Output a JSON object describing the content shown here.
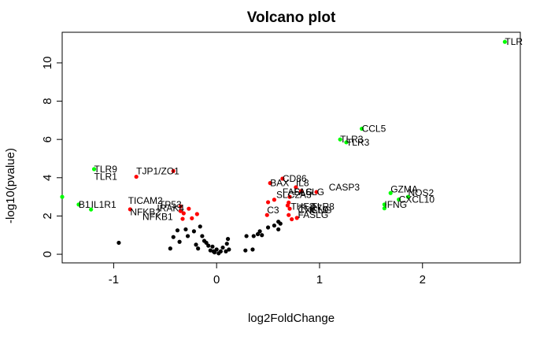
{
  "chart_data": {
    "type": "scatter",
    "title": "Volcano plot",
    "xlabel": "log2FoldChange",
    "ylabel": "-log10(pvalue)",
    "xlim": [
      -1.5,
      2.95
    ],
    "ylim": [
      -0.45,
      11.6
    ],
    "x_ticks": [
      -1,
      0,
      1,
      2
    ],
    "y_ticks": [
      0,
      2,
      4,
      6,
      8,
      10
    ],
    "grid": false,
    "legend": "none",
    "colors": {
      "black": "#000000",
      "red": "#ff0000",
      "green": "#00ff00"
    },
    "points": [
      {
        "x": 2.8,
        "y": 11.1,
        "color": "green",
        "label": "TLR"
      },
      {
        "x": 1.41,
        "y": 6.56,
        "color": "green",
        "label": "CCL5"
      },
      {
        "x": 1.2,
        "y": 6.0,
        "color": "green",
        "label": "TLR3"
      },
      {
        "x": 1.26,
        "y": 5.85,
        "color": "green",
        "label": "TLR3"
      },
      {
        "x": 1.69,
        "y": 3.2,
        "color": "green",
        "label": "GZMA"
      },
      {
        "x": 1.86,
        "y": 3.0,
        "color": "green",
        "label": "NOS2"
      },
      {
        "x": 1.77,
        "y": 2.86,
        "color": "green",
        "label": "CXCL10"
      },
      {
        "x": 1.63,
        "y": 2.6,
        "color": "green",
        "label": "IFNG"
      },
      {
        "x": 1.63,
        "y": 2.4,
        "color": "green",
        "label": ""
      },
      {
        "x": -1.19,
        "y": 4.45,
        "color": "green",
        "label": "TLR9"
      },
      {
        "x": -1.34,
        "y": 2.6,
        "color": "green",
        "label": "B1"
      },
      {
        "x": -1.22,
        "y": 2.34,
        "color": "green",
        "label": "IL1R1"
      },
      {
        "x": -1.5,
        "y": 3.0,
        "color": "green",
        "label": ""
      },
      {
        "x": -0.42,
        "y": 4.35,
        "color": "red",
        "label": "TJP1/ZO1"
      },
      {
        "x": -0.78,
        "y": 4.05,
        "color": "red",
        "label": "TLR1"
      },
      {
        "x": -0.35,
        "y": 2.5,
        "color": "red",
        "label": "TICAM2"
      },
      {
        "x": -0.27,
        "y": 2.38,
        "color": "red",
        "label": "TP53"
      },
      {
        "x": -0.84,
        "y": 2.35,
        "color": "red",
        "label": "IRAK4"
      },
      {
        "x": -0.35,
        "y": 2.26,
        "color": "red",
        "label": "NFKB1"
      },
      {
        "x": -0.32,
        "y": 2.14,
        "color": "red",
        "label": "NFKB1"
      },
      {
        "x": -0.19,
        "y": 2.1,
        "color": "red",
        "label": ""
      },
      {
        "x": -0.33,
        "y": 1.85,
        "color": "red",
        "label": ""
      },
      {
        "x": -0.24,
        "y": 1.88,
        "color": "red",
        "label": ""
      },
      {
        "x": 0.64,
        "y": 3.95,
        "color": "red",
        "label": "CD86"
      },
      {
        "x": 0.77,
        "y": 3.5,
        "color": "red",
        "label": "IL8"
      },
      {
        "x": 0.52,
        "y": 3.72,
        "color": "red",
        "label": "BAX"
      },
      {
        "x": 0.82,
        "y": 3.3,
        "color": "red",
        "label": "FASLG"
      },
      {
        "x": 0.97,
        "y": 3.25,
        "color": "red",
        "label": "CASP3"
      },
      {
        "x": 0.71,
        "y": 3.0,
        "color": "red",
        "label": "SLC2A3"
      },
      {
        "x": 0.56,
        "y": 2.85,
        "color": "red",
        "label": ""
      },
      {
        "x": 0.5,
        "y": 2.72,
        "color": "red",
        "label": ""
      },
      {
        "x": 0.7,
        "y": 2.7,
        "color": "red",
        "label": "TLR8"
      },
      {
        "x": 0.69,
        "y": 2.55,
        "color": "red",
        "label": "TLR7"
      },
      {
        "x": 0.71,
        "y": 2.38,
        "color": "red",
        "label": "FASLG"
      },
      {
        "x": 0.49,
        "y": 2.05,
        "color": "red",
        "label": "C3"
      },
      {
        "x": 0.7,
        "y": 2.05,
        "color": "red",
        "label": ""
      },
      {
        "x": 0.73,
        "y": 1.83,
        "color": "red",
        "label": ""
      },
      {
        "x": 0.78,
        "y": 1.9,
        "color": "red",
        "label": ""
      },
      {
        "x": -0.95,
        "y": 0.6,
        "color": "black",
        "label": ""
      },
      {
        "x": -0.45,
        "y": 0.3,
        "color": "black",
        "label": ""
      },
      {
        "x": -0.42,
        "y": 0.9,
        "color": "black",
        "label": ""
      },
      {
        "x": -0.38,
        "y": 1.25,
        "color": "black",
        "label": ""
      },
      {
        "x": -0.36,
        "y": 0.65,
        "color": "black",
        "label": ""
      },
      {
        "x": -0.3,
        "y": 1.3,
        "color": "black",
        "label": ""
      },
      {
        "x": -0.28,
        "y": 0.95,
        "color": "black",
        "label": ""
      },
      {
        "x": -0.22,
        "y": 1.2,
        "color": "black",
        "label": ""
      },
      {
        "x": -0.2,
        "y": 0.5,
        "color": "black",
        "label": ""
      },
      {
        "x": -0.18,
        "y": 0.3,
        "color": "black",
        "label": ""
      },
      {
        "x": -0.16,
        "y": 1.45,
        "color": "black",
        "label": ""
      },
      {
        "x": -0.14,
        "y": 0.95,
        "color": "black",
        "label": ""
      },
      {
        "x": -0.12,
        "y": 0.7,
        "color": "black",
        "label": ""
      },
      {
        "x": -0.1,
        "y": 0.6,
        "color": "black",
        "label": ""
      },
      {
        "x": -0.08,
        "y": 0.45,
        "color": "black",
        "label": ""
      },
      {
        "x": -0.06,
        "y": 0.2,
        "color": "black",
        "label": ""
      },
      {
        "x": -0.04,
        "y": 0.4,
        "color": "black",
        "label": ""
      },
      {
        "x": -0.02,
        "y": 0.1,
        "color": "black",
        "label": ""
      },
      {
        "x": 0.0,
        "y": 0.25,
        "color": "black",
        "label": ""
      },
      {
        "x": 0.02,
        "y": 0.05,
        "color": "black",
        "label": ""
      },
      {
        "x": 0.04,
        "y": 0.15,
        "color": "black",
        "label": ""
      },
      {
        "x": 0.06,
        "y": 0.35,
        "color": "black",
        "label": ""
      },
      {
        "x": 0.09,
        "y": 0.15,
        "color": "black",
        "label": ""
      },
      {
        "x": 0.1,
        "y": 0.55,
        "color": "black",
        "label": ""
      },
      {
        "x": 0.11,
        "y": 0.8,
        "color": "black",
        "label": ""
      },
      {
        "x": 0.12,
        "y": 0.25,
        "color": "black",
        "label": ""
      },
      {
        "x": -0.03,
        "y": 0.15,
        "color": "black",
        "label": ""
      },
      {
        "x": 0.28,
        "y": 0.2,
        "color": "black",
        "label": ""
      },
      {
        "x": 0.29,
        "y": 0.95,
        "color": "black",
        "label": ""
      },
      {
        "x": 0.35,
        "y": 0.25,
        "color": "black",
        "label": ""
      },
      {
        "x": 0.36,
        "y": 0.95,
        "color": "black",
        "label": ""
      },
      {
        "x": 0.4,
        "y": 1.05,
        "color": "black",
        "label": ""
      },
      {
        "x": 0.42,
        "y": 1.2,
        "color": "black",
        "label": ""
      },
      {
        "x": 0.44,
        "y": 1.0,
        "color": "black",
        "label": ""
      },
      {
        "x": 0.5,
        "y": 1.4,
        "color": "black",
        "label": ""
      },
      {
        "x": 0.56,
        "y": 1.5,
        "color": "black",
        "label": ""
      },
      {
        "x": 0.6,
        "y": 1.3,
        "color": "black",
        "label": ""
      },
      {
        "x": 0.62,
        "y": 1.6,
        "color": "black",
        "label": ""
      },
      {
        "x": 0.6,
        "y": 1.7,
        "color": "black",
        "label": ""
      }
    ],
    "labels": [
      {
        "text": "TLR",
        "x": 2.8,
        "y": 11.1
      },
      {
        "text": "CCL5",
        "x": 1.41,
        "y": 6.56
      },
      {
        "text": "TLR3",
        "x": 1.2,
        "y": 6.0
      },
      {
        "text": "TLR3",
        "x": 1.26,
        "y": 5.85
      },
      {
        "text": "TLR9",
        "x": -1.19,
        "y": 4.45
      },
      {
        "text": "TJP1/ZO1",
        "x": -0.78,
        "y": 4.35
      },
      {
        "text": "TLR1",
        "x": -1.19,
        "y": 4.05
      },
      {
        "text": "CD86",
        "x": 0.64,
        "y": 3.95
      },
      {
        "text": "BAX",
        "x": 0.52,
        "y": 3.72
      },
      {
        "text": "IL8",
        "x": 0.77,
        "y": 3.72
      },
      {
        "text": "CASP3",
        "x": 1.09,
        "y": 3.5
      },
      {
        "text": "GZMA",
        "x": 1.69,
        "y": 3.4
      },
      {
        "text": "NOS2",
        "x": 1.86,
        "y": 3.2
      },
      {
        "text": "FASLG",
        "x": 0.64,
        "y": 3.25
      },
      {
        "text": "FASLG",
        "x": 0.75,
        "y": 3.25
      },
      {
        "text": "SLC2A3",
        "x": 0.58,
        "y": 3.1
      },
      {
        "text": "CXCL10",
        "x": 1.77,
        "y": 2.86
      },
      {
        "text": "B1",
        "x": -1.34,
        "y": 2.6
      },
      {
        "text": "IL1R1",
        "x": -1.22,
        "y": 2.6
      },
      {
        "text": "TICAM2",
        "x": -0.86,
        "y": 2.8
      },
      {
        "text": "TP53",
        "x": -0.56,
        "y": 2.6
      },
      {
        "text": "IFNG",
        "x": 1.63,
        "y": 2.6
      },
      {
        "text": "TLR8",
        "x": 0.92,
        "y": 2.5
      },
      {
        "text": "TLR7",
        "x": 0.8,
        "y": 2.4
      },
      {
        "text": "IFNG",
        "x": 0.9,
        "y": 2.3
      },
      {
        "text": "THF2",
        "x": 0.72,
        "y": 2.5
      },
      {
        "text": "IRAK4",
        "x": -0.58,
        "y": 2.4
      },
      {
        "text": "C3",
        "x": 0.49,
        "y": 2.3
      },
      {
        "text": "NFKB2",
        "x": -0.84,
        "y": 2.2
      },
      {
        "text": "NFKB1",
        "x": -0.72,
        "y": 1.95
      },
      {
        "text": "CXCL9",
        "x": 0.79,
        "y": 2.3
      },
      {
        "text": "FASLG",
        "x": 0.79,
        "y": 2.05
      }
    ]
  }
}
